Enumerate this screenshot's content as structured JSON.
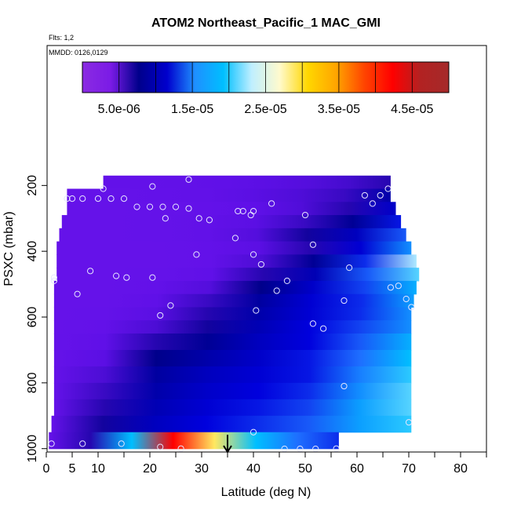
{
  "chart_data": {
    "type": "heatmap",
    "title": "ATOM2 Northeast_Pacific_1 MAC_GMI",
    "annotations": [
      "Flts: 1,2",
      "MMDD: 0126,0129"
    ],
    "xlabel": "Latitude (deg N)",
    "ylabel": "PSXC (mbar)",
    "xlim": [
      0,
      85
    ],
    "ylim": [
      1000,
      0
    ],
    "x_ticks": [
      0,
      5,
      10,
      20,
      30,
      40,
      50,
      60,
      70,
      80
    ],
    "y_ticks": [
      200,
      400,
      600,
      800,
      1000
    ],
    "colorbar": {
      "range": [
        0,
        5e-05
      ],
      "tick_labels": [
        "5.0e-06",
        "1.5e-05",
        "2.5e-05",
        "3.5e-05",
        "4.5e-05"
      ],
      "tick_values": [
        5e-06,
        1.5e-05,
        2.5e-05,
        3.5e-05,
        4.5e-05
      ],
      "colors": [
        "#8a2be2",
        "#7b1be6",
        "#00008b",
        "#0000cd",
        "#1e90ff",
        "#00bfff",
        "#bfefff",
        "#fffacd",
        "#ffd700",
        "#ffa500",
        "#ff4500",
        "#ff0000",
        "#b22222",
        "#a52a2a"
      ]
    },
    "colormap_stops": [
      {
        "v": 0,
        "c": "#8c1ff0"
      },
      {
        "v": 3.5e-06,
        "c": "#5f10e8"
      },
      {
        "v": 6e-06,
        "c": "#00008b"
      },
      {
        "v": 1e-05,
        "c": "#0000dd"
      },
      {
        "v": 1.5e-05,
        "c": "#1e6fff"
      },
      {
        "v": 2e-05,
        "c": "#00bfff"
      },
      {
        "v": 2.5e-05,
        "c": "#d8f4ff"
      },
      {
        "v": 3e-05,
        "c": "#fffaa0"
      },
      {
        "v": 3.5e-05,
        "c": "#ffcc00"
      },
      {
        "v": 4e-05,
        "c": "#ff7a00"
      },
      {
        "v": 4.5e-05,
        "c": "#ff0000"
      },
      {
        "v": 5e-05,
        "c": "#9b1b1b"
      }
    ],
    "cells": [
      {
        "p": [
          170,
          210
        ],
        "lat": [
          11.0,
          66.5
        ],
        "v": [
          3.2e-06,
          3.2e-06,
          3.3e-06,
          3.4e-06,
          3.6e-06,
          3.8e-06,
          4.2e-06,
          5e-06
        ]
      },
      {
        "p": [
          210,
          250
        ],
        "lat": [
          4.0,
          66.5
        ],
        "v": [
          3e-06,
          3.1e-06,
          3.2e-06,
          3.3e-06,
          3.6e-06,
          3.9e-06,
          4.5e-06,
          7.5e-06
        ]
      },
      {
        "p": [
          250,
          290
        ],
        "lat": [
          4.0,
          67.5
        ],
        "v": [
          3e-06,
          3e-06,
          3.1e-06,
          3.2e-06,
          3.5e-06,
          3.9e-06,
          5e-06,
          9e-06
        ]
      },
      {
        "p": [
          290,
          330
        ],
        "lat": [
          3.0,
          68.5
        ],
        "v": [
          3e-06,
          3e-06,
          3.1e-06,
          3.3e-06,
          3.6e-06,
          4.5e-06,
          6.5e-06,
          1.1e-05
        ]
      },
      {
        "p": [
          330,
          370
        ],
        "lat": [
          2.5,
          69.5
        ],
        "v": [
          3e-06,
          3e-06,
          3.1e-06,
          3.3e-06,
          3.8e-06,
          5.5e-06,
          8.5e-06,
          1.4e-05
        ]
      },
      {
        "p": [
          370,
          410
        ],
        "lat": [
          2.0,
          70.5
        ],
        "v": [
          3e-06,
          3e-06,
          3e-06,
          3.2e-06,
          3.6e-06,
          5e-06,
          9.5e-06,
          1.7e-05
        ]
      },
      {
        "p": [
          410,
          450
        ],
        "lat": [
          2.0,
          71.5
        ],
        "v": [
          3e-06,
          3e-06,
          3e-06,
          3.2e-06,
          4e-06,
          6.5e-06,
          1.2e-05,
          2.4e-05
        ]
      },
      {
        "p": [
          450,
          490
        ],
        "lat": [
          2.0,
          72.0
        ],
        "v": [
          3e-06,
          3e-06,
          3.1e-06,
          3.4e-06,
          5e-06,
          8e-06,
          1.4e-05,
          2.2e-05
        ]
      },
      {
        "p": [
          490,
          530
        ],
        "lat": [
          1.5,
          71.5
        ],
        "v": [
          3e-06,
          3e-06,
          3.2e-06,
          3.8e-06,
          6e-06,
          9e-06,
          1.3e-05,
          1.9e-05
        ]
      },
      {
        "p": [
          530,
          570
        ],
        "lat": [
          1.5,
          71.0
        ],
        "v": [
          3e-06,
          3e-06,
          3.4e-06,
          4.5e-06,
          7e-06,
          9.5e-06,
          1.2e-05,
          1.8e-05
        ]
      },
      {
        "p": [
          570,
          610
        ],
        "lat": [
          1.5,
          70.5
        ],
        "v": [
          3e-06,
          3.1e-06,
          3.6e-06,
          5e-06,
          7.5e-06,
          9.5e-06,
          1.2e-05,
          1.7e-05
        ]
      },
      {
        "p": [
          610,
          650
        ],
        "lat": [
          1.5,
          70.5
        ],
        "v": [
          3e-06,
          3.2e-06,
          4e-06,
          5.5e-06,
          8e-06,
          1e-05,
          1.3e-05,
          1.7e-05
        ]
      },
      {
        "p": [
          650,
          700
        ],
        "lat": [
          1.5,
          70.5
        ],
        "v": [
          3e-06,
          3.4e-06,
          5e-06,
          6.5e-06,
          8.5e-06,
          1e-05,
          1.4e-05,
          1.9e-05
        ]
      },
      {
        "p": [
          700,
          750
        ],
        "lat": [
          1.5,
          70.5
        ],
        "v": [
          3e-06,
          3.6e-06,
          6e-06,
          7.5e-06,
          9e-06,
          1.1e-05,
          1.5e-05,
          2e-05
        ]
      },
      {
        "p": [
          750,
          800
        ],
        "lat": [
          1.5,
          70.5
        ],
        "v": [
          3e-06,
          4e-06,
          7e-06,
          8.5e-06,
          9.5e-06,
          1.1e-05,
          1.6e-05,
          2.1e-05
        ]
      },
      {
        "p": [
          800,
          850
        ],
        "lat": [
          1.5,
          70.5
        ],
        "v": [
          3e-06,
          4.5e-06,
          7.5e-06,
          9e-06,
          1e-05,
          1.2e-05,
          1.7e-05,
          2.2e-05
        ]
      },
      {
        "p": [
          850,
          900
        ],
        "lat": [
          1.5,
          70.5
        ],
        "v": [
          3e-06,
          5e-06,
          8e-06,
          9.5e-06,
          1.1e-05,
          1.3e-05,
          1.8e-05,
          2.2e-05
        ]
      },
      {
        "p": [
          900,
          950
        ],
        "lat": [
          1.0,
          70.5
        ],
        "v": [
          3e-06,
          5.5e-06,
          8.5e-06,
          1e-05,
          1.2e-05,
          1.4e-05,
          1.8e-05,
          2.1e-05
        ]
      },
      {
        "p": [
          950,
          1000
        ],
        "lat": [
          0.5,
          56.5
        ],
        "v": [
          3e-06,
          5e-06,
          2e-05,
          4.5e-05,
          3.2e-05,
          2e-05,
          1.5e-05,
          1.2e-05
        ]
      }
    ],
    "sample_points": [
      [
        11.0,
        210
      ],
      [
        27.5,
        182
      ],
      [
        20.5,
        203
      ],
      [
        4.0,
        240
      ],
      [
        5.0,
        240
      ],
      [
        7.0,
        240
      ],
      [
        10.0,
        240
      ],
      [
        12.5,
        240
      ],
      [
        15.0,
        240
      ],
      [
        17.5,
        265
      ],
      [
        20.0,
        265
      ],
      [
        22.5,
        265
      ],
      [
        25.0,
        265
      ],
      [
        27.5,
        270
      ],
      [
        23.0,
        300
      ],
      [
        29.5,
        300
      ],
      [
        31.5,
        305
      ],
      [
        37.0,
        278
      ],
      [
        38.0,
        278
      ],
      [
        40.0,
        278
      ],
      [
        39.5,
        290
      ],
      [
        43.5,
        255
      ],
      [
        50.0,
        290
      ],
      [
        61.5,
        230
      ],
      [
        63.0,
        255
      ],
      [
        64.5,
        230
      ],
      [
        66.0,
        210
      ],
      [
        36.5,
        360
      ],
      [
        40.0,
        410
      ],
      [
        41.5,
        440
      ],
      [
        51.5,
        380
      ],
      [
        58.5,
        450
      ],
      [
        29.0,
        410
      ],
      [
        46.5,
        490
      ],
      [
        1.5,
        480
      ],
      [
        1.5,
        490
      ],
      [
        8.5,
        460
      ],
      [
        13.5,
        475
      ],
      [
        15.5,
        480
      ],
      [
        20.5,
        480
      ],
      [
        44.5,
        520
      ],
      [
        6.0,
        530
      ],
      [
        57.5,
        550
      ],
      [
        66.5,
        510
      ],
      [
        68.0,
        505
      ],
      [
        69.5,
        545
      ],
      [
        70.5,
        570
      ],
      [
        24.0,
        565
      ],
      [
        22.0,
        595
      ],
      [
        40.5,
        580
      ],
      [
        51.5,
        620
      ],
      [
        53.5,
        635
      ],
      [
        57.5,
        810
      ],
      [
        70.0,
        920
      ],
      [
        40.0,
        950
      ],
      [
        1.0,
        985
      ],
      [
        7.0,
        985
      ],
      [
        14.5,
        985
      ],
      [
        22.0,
        995
      ],
      [
        26.0,
        1000
      ],
      [
        46.0,
        1005
      ],
      [
        49.0,
        1010
      ],
      [
        52.0,
        1005
      ],
      [
        56.0,
        1000
      ]
    ],
    "marker": {
      "lat": 35.0,
      "label": "↓"
    }
  }
}
